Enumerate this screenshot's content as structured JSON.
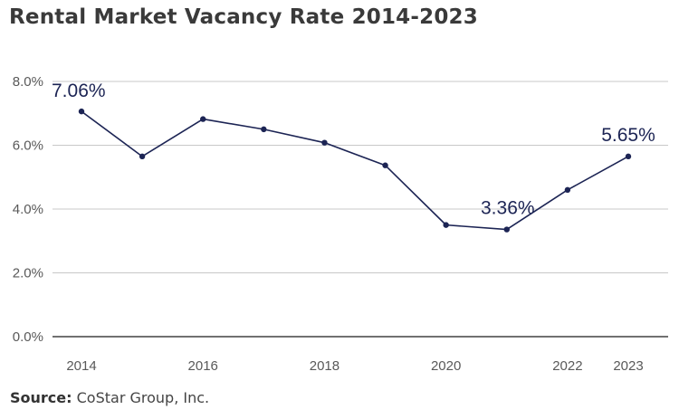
{
  "title": "Rental Market Vacancy Rate 2014-2023",
  "source": {
    "label": "Source:",
    "text": "CoStar Group, Inc."
  },
  "chart_data": {
    "type": "line",
    "title": "Rental Market Vacancy Rate 2014-2023",
    "xlabel": "",
    "ylabel": "",
    "x": [
      2014,
      2015,
      2016,
      2017,
      2018,
      2019,
      2020,
      2021,
      2022,
      2023
    ],
    "xticks": [
      "2014",
      "2016",
      "2018",
      "2020",
      "2022",
      "2023"
    ],
    "ylim": [
      0,
      8
    ],
    "yticks": [
      "0.0%",
      "2.0%",
      "4.0%",
      "6.0%",
      "8.0%"
    ],
    "grid": true,
    "series": [
      {
        "values": [
          7.06,
          5.65,
          6.82,
          6.5,
          6.08,
          5.37,
          3.5,
          3.36,
          4.6,
          5.65
        ],
        "color": "#1c2454"
      }
    ],
    "annotations": [
      {
        "x": 2014,
        "text": "7.06%"
      },
      {
        "x": 2021,
        "text": "3.36%"
      },
      {
        "x": 2023,
        "text": "5.65%"
      }
    ]
  }
}
